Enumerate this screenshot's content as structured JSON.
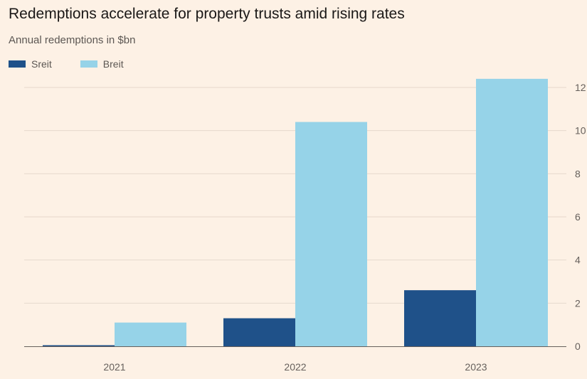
{
  "title": "Redemptions accelerate for property trusts amid rising rates",
  "subtitle": "Annual redemptions in $bn",
  "colors": {
    "background": "#fdf1e5",
    "sreit": "#1f5189",
    "breit": "#96d3e8",
    "grid": "#e6d8cc",
    "axis": "#66605c"
  },
  "chart_data": {
    "type": "bar",
    "title": "Redemptions accelerate for property trusts amid rising rates",
    "subtitle": "Annual redemptions in $bn",
    "categories": [
      "2021",
      "2022",
      "2023"
    ],
    "series": [
      {
        "name": "Sreit",
        "values": [
          0.05,
          1.3,
          2.6
        ]
      },
      {
        "name": "Breit",
        "values": [
          1.1,
          10.4,
          12.4
        ]
      }
    ],
    "ylim": [
      0,
      12
    ],
    "yticks": [
      "0",
      "2",
      "4",
      "6",
      "8",
      "10",
      "12"
    ],
    "y_axis_position": "right",
    "grid": true,
    "legend_position": "top-left"
  }
}
